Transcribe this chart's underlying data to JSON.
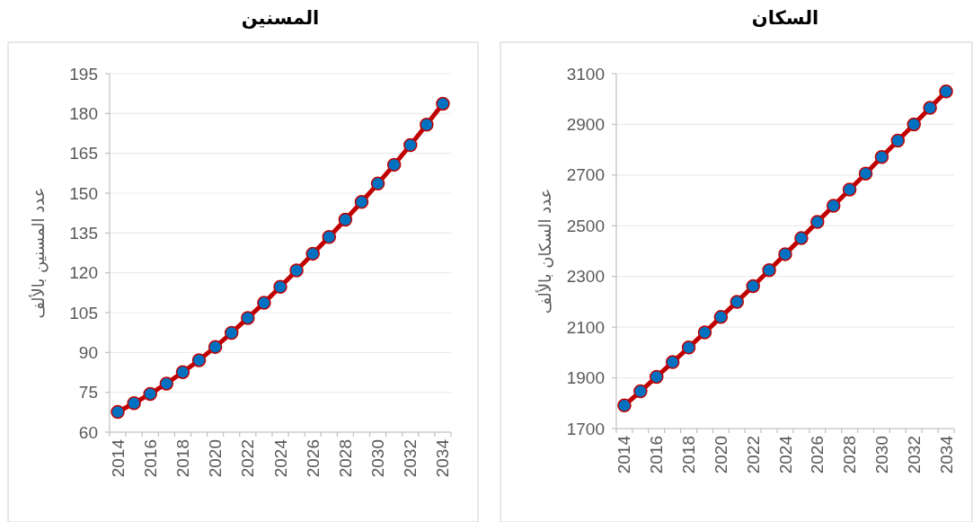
{
  "chart_data": [
    {
      "type": "line",
      "title": "المسنين",
      "ylabel": "عدد المسنين بالألف",
      "categories": [
        "2014",
        null,
        "2016",
        null,
        "2018",
        null,
        "2020",
        null,
        "2022",
        null,
        "2024",
        null,
        "2026",
        null,
        "2028",
        null,
        "2030",
        null,
        "2032",
        null,
        "2034"
      ],
      "series": [
        {
          "color": "#c00000",
          "colors": [
            "#0070c0",
            "#0070c0",
            "#0070c0",
            "#0070c0",
            "#0070c0",
            "#0070c0",
            "#0070c0",
            "#0070c0",
            "#0070c0",
            "#0070c0",
            "#0070c0",
            "#0070c0",
            "#0070c0",
            "#0070c0",
            "#0070c0",
            "#0070c0",
            "#0070c0",
            "#0070c0",
            "#0070c0",
            "#0070c0",
            "#0070c0"
          ],
          "values": [
            67.6,
            70.9,
            74.4,
            78.3,
            82.6,
            87.1,
            92.1,
            97.4,
            103.0,
            108.7,
            114.7,
            120.9,
            127.2,
            133.5,
            140.0,
            146.7,
            153.6,
            160.7,
            168.1,
            175.8,
            183.7
          ]
        }
      ],
      "ylim": [
        60,
        195
      ],
      "yticks": [
        60,
        75,
        90,
        105,
        120,
        135,
        150,
        165,
        180,
        195
      ],
      "grid": "y",
      "marker": "circle",
      "line_style": "solid"
    },
    {
      "type": "line",
      "title": "السكان",
      "ylabel": "عدد السكان بالألف",
      "categories": [
        "2014",
        null,
        "2016",
        null,
        "2018",
        null,
        "2020",
        null,
        "2022",
        null,
        "2024",
        null,
        "2026",
        null,
        "2028",
        null,
        "2030",
        null,
        "2032",
        null,
        "2034"
      ],
      "series": [
        {
          "color": "#c00000",
          "colors": [
            "#0070c0",
            "#0070c0",
            "#0070c0",
            "#0070c0",
            "#0070c0",
            "#0070c0",
            "#0070c0",
            "#0070c0",
            "#0070c0",
            "#0070c0",
            "#0070c0",
            "#0070c0",
            "#0070c0",
            "#0070c0",
            "#0070c0",
            "#0070c0",
            "#0070c0",
            "#0070c0",
            "#0070c0",
            "#0070c0",
            "#0070c0"
          ],
          "values": [
            1791,
            1847,
            1904,
            1962,
            2020,
            2079,
            2140,
            2200,
            2262,
            2325,
            2388,
            2451,
            2515,
            2579,
            2643,
            2706,
            2771,
            2836,
            2900,
            2965,
            3030
          ]
        }
      ],
      "ylim": [
        1700,
        3100
      ],
      "yticks": [
        1700,
        1900,
        2100,
        2300,
        2500,
        2700,
        2900,
        3100
      ],
      "grid": "y",
      "marker": "circle",
      "line_style": "solid"
    }
  ]
}
